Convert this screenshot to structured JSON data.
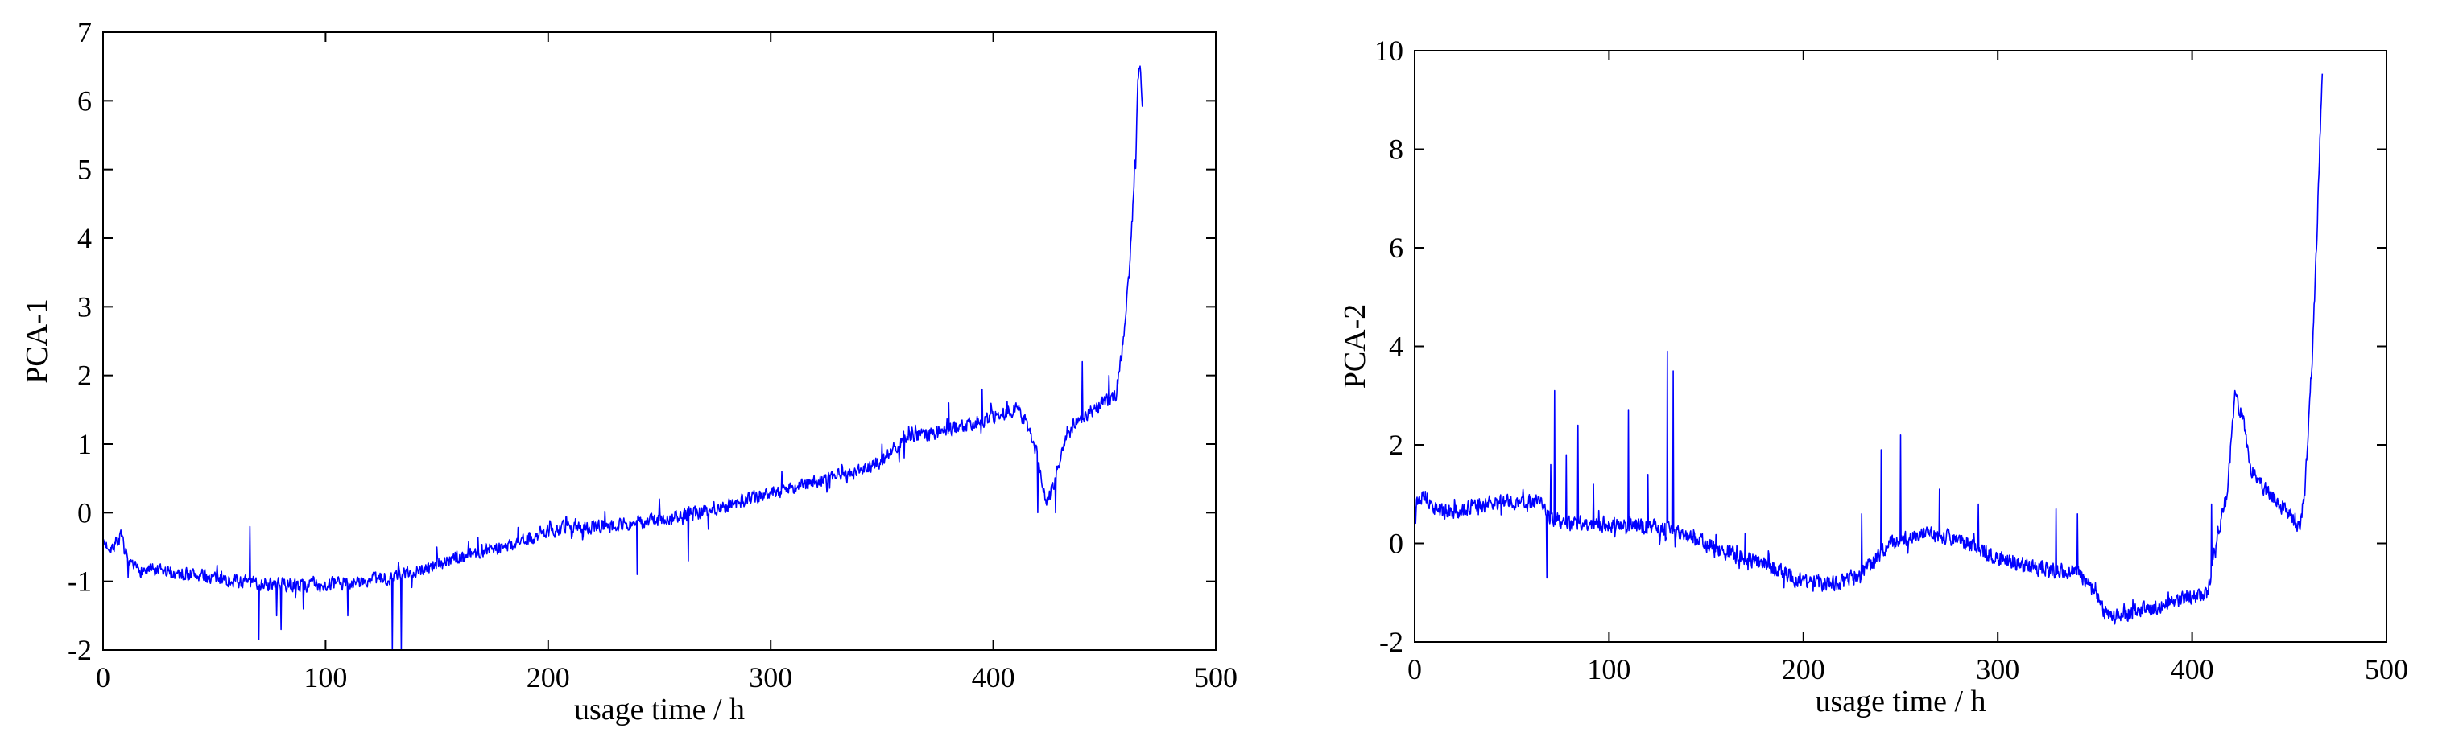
{
  "chart_data": [
    {
      "type": "line",
      "panel": "left",
      "title": "",
      "xlabel": "usage time / h",
      "ylabel": "PCA-1",
      "xlim": [
        0,
        500
      ],
      "ylim": [
        -2,
        7
      ],
      "xticks": [
        0,
        100,
        200,
        300,
        400,
        500
      ],
      "yticks": [
        -2,
        -1,
        0,
        1,
        2,
        3,
        4,
        5,
        6,
        7
      ],
      "xtick_labels": [
        "0",
        "100",
        "200",
        "300",
        "400",
        "500"
      ],
      "ytick_labels": [
        "-2",
        "-1",
        "0",
        "1",
        "2",
        "3",
        "4",
        "5",
        "6",
        "7"
      ],
      "grid": false,
      "line_color": "#0000ff",
      "noise": 0.13,
      "seed": 7,
      "x": [
        0,
        4,
        8,
        12,
        20,
        40,
        60,
        80,
        100,
        120,
        135,
        150,
        170,
        180,
        190,
        200,
        220,
        240,
        260,
        280,
        300,
        320,
        340,
        350,
        360,
        370,
        380,
        390,
        400,
        405,
        410,
        415,
        420,
        424,
        428,
        432,
        436,
        440,
        445,
        450,
        455,
        458,
        460,
        462,
        464,
        465,
        466,
        467
      ],
      "y": [
        -0.45,
        -0.5,
        -0.35,
        -0.8,
        -0.85,
        -0.9,
        -1.0,
        -1.05,
        -1.05,
        -1.0,
        -0.9,
        -0.75,
        -0.55,
        -0.5,
        -0.4,
        -0.25,
        -0.2,
        -0.15,
        -0.05,
        0.1,
        0.3,
        0.45,
        0.6,
        0.75,
        1.1,
        1.15,
        1.2,
        1.3,
        1.4,
        1.45,
        1.5,
        1.3,
        0.8,
        0.1,
        0.5,
        1.0,
        1.3,
        1.4,
        1.5,
        1.6,
        1.7,
        2.4,
        3.1,
        4.0,
        5.2,
        6.2,
        6.6,
        6.0
      ],
      "spikes": [
        [
          66,
          -0.2
        ],
        [
          70,
          -1.85
        ],
        [
          78,
          -1.5
        ],
        [
          80,
          -1.7
        ],
        [
          90,
          -1.4
        ],
        [
          110,
          -1.5
        ],
        [
          130,
          -2.0
        ],
        [
          134,
          -2.0
        ],
        [
          150,
          -0.5
        ],
        [
          240,
          -0.9
        ],
        [
          250,
          0.2
        ],
        [
          263,
          -0.7
        ],
        [
          305,
          0.6
        ],
        [
          350,
          1.0
        ],
        [
          360,
          0.8
        ],
        [
          380,
          1.6
        ],
        [
          395,
          1.8
        ],
        [
          420,
          0.0
        ],
        [
          428,
          0.0
        ],
        [
          440,
          2.2
        ],
        [
          452,
          2.0
        ]
      ]
    },
    {
      "type": "line",
      "panel": "right",
      "title": "",
      "xlabel": "usage time / h",
      "ylabel": "PCA-2",
      "xlim": [
        0,
        500
      ],
      "ylim": [
        -2,
        10
      ],
      "xticks": [
        0,
        100,
        200,
        300,
        400,
        500
      ],
      "yticks": [
        -2,
        0,
        2,
        4,
        6,
        8,
        10
      ],
      "xtick_labels": [
        "0",
        "100",
        "200",
        "300",
        "400",
        "500"
      ],
      "ytick_labels": [
        "-2",
        "0",
        "2",
        "4",
        "6",
        "8",
        "10"
      ],
      "grid": false,
      "line_color": "#0000ff",
      "noise": 0.2,
      "seed": 13,
      "x": [
        0,
        5,
        10,
        20,
        30,
        40,
        50,
        60,
        66,
        70,
        80,
        100,
        120,
        140,
        160,
        180,
        200,
        220,
        235,
        245,
        260,
        280,
        300,
        320,
        340,
        350,
        355,
        360,
        380,
        400,
        408,
        412,
        418,
        422,
        426,
        430,
        440,
        450,
        455,
        458,
        460,
        462,
        464,
        466,
        467
      ],
      "y": [
        0.8,
        1.0,
        0.7,
        0.6,
        0.75,
        0.8,
        0.85,
        0.85,
        0.8,
        0.5,
        0.4,
        0.4,
        0.35,
        0.2,
        -0.2,
        -0.4,
        -0.8,
        -0.8,
        -0.4,
        0.0,
        0.2,
        0.1,
        -0.3,
        -0.5,
        -0.6,
        -0.9,
        -1.4,
        -1.5,
        -1.3,
        -1.1,
        -1.0,
        0.0,
        1.0,
        3.0,
        2.6,
        1.5,
        1.0,
        0.6,
        0.3,
        1.0,
        2.5,
        4.0,
        6.0,
        8.5,
        9.6
      ],
      "spikes": [
        [
          68,
          -0.7
        ],
        [
          70,
          1.6
        ],
        [
          72,
          3.1
        ],
        [
          78,
          1.8
        ],
        [
          84,
          2.4
        ],
        [
          92,
          1.2
        ],
        [
          110,
          2.7
        ],
        [
          120,
          1.4
        ],
        [
          130,
          3.9
        ],
        [
          133,
          3.5
        ],
        [
          170,
          0.2
        ],
        [
          190,
          -0.9
        ],
        [
          230,
          0.6
        ],
        [
          240,
          1.9
        ],
        [
          250,
          2.2
        ],
        [
          270,
          1.1
        ],
        [
          290,
          0.8
        ],
        [
          330,
          0.7
        ],
        [
          341,
          0.6
        ],
        [
          360,
          -1.6
        ],
        [
          410,
          0.8
        ]
      ]
    }
  ]
}
